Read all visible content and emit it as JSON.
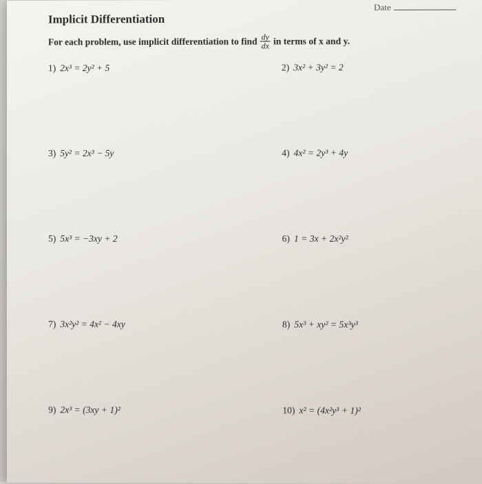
{
  "header": {
    "dateLabel": "Date",
    "title": "Implicit Differentiation",
    "instr_pre": "For each problem, use implicit differentiation to find",
    "instr_post": "in terms of x and y.",
    "frac_num": "dy",
    "frac_den": "dx"
  },
  "problems": {
    "p1": {
      "n": "1)",
      "eq": "2x³ = 2y² + 5"
    },
    "p2": {
      "n": "2)",
      "eq": "3x² + 3y² = 2"
    },
    "p3": {
      "n": "3)",
      "eq": "5y² = 2x³ − 5y"
    },
    "p4": {
      "n": "4)",
      "eq": "4x² = 2y³ + 4y"
    },
    "p5": {
      "n": "5)",
      "eq": "5x³ = −3xy + 2"
    },
    "p6": {
      "n": "6)",
      "eq": "1 = 3x + 2x²y²"
    },
    "p7": {
      "n": "7)",
      "eq": "3x²y² = 4x² − 4xy"
    },
    "p8": {
      "n": "8)",
      "eq": "5x³ + xy² = 5x³y³"
    },
    "p9": {
      "n": "9)",
      "eq": "2x³ = (3xy + 1)²"
    },
    "p10": {
      "n": "10)",
      "eq": "x² = (4x²y³ + 1)²"
    }
  }
}
